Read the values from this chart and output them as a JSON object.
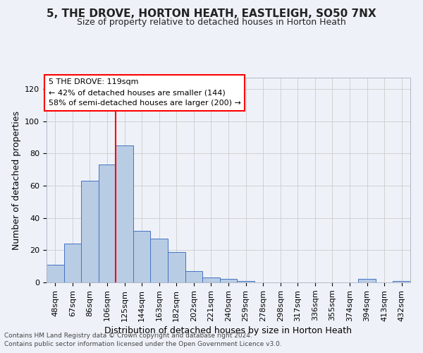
{
  "title_line1": "5, THE DROVE, HORTON HEATH, EASTLEIGH, SO50 7NX",
  "title_line2": "Size of property relative to detached houses in Horton Heath",
  "xlabel": "Distribution of detached houses by size in Horton Heath",
  "ylabel": "Number of detached properties",
  "bar_labels": [
    "48sqm",
    "67sqm",
    "86sqm",
    "106sqm",
    "125sqm",
    "144sqm",
    "163sqm",
    "182sqm",
    "202sqm",
    "221sqm",
    "240sqm",
    "259sqm",
    "278sqm",
    "298sqm",
    "317sqm",
    "336sqm",
    "355sqm",
    "374sqm",
    "394sqm",
    "413sqm",
    "432sqm"
  ],
  "bar_values": [
    11,
    24,
    63,
    73,
    85,
    32,
    27,
    19,
    7,
    3,
    2,
    1,
    0,
    0,
    0,
    0,
    0,
    0,
    2,
    0,
    1
  ],
  "bar_color": "#b8cce4",
  "bar_edge_color": "#4472c4",
  "grid_color": "#d0d0d0",
  "vline_index": 4,
  "vline_color": "red",
  "annotation_text_line1": "5 THE DROVE: 119sqm",
  "annotation_text_line2": "← 42% of detached houses are smaller (144)",
  "annotation_text_line3": "58% of semi-detached houses are larger (200) →",
  "annotation_box_color": "white",
  "annotation_border_color": "red",
  "ylim": [
    0,
    127
  ],
  "yticks": [
    0,
    20,
    40,
    60,
    80,
    100,
    120
  ],
  "footnote1": "Contains HM Land Registry data © Crown copyright and database right 2024.",
  "footnote2": "Contains public sector information licensed under the Open Government Licence v3.0.",
  "bg_color": "#eef2f8",
  "plot_bg_color": "#eef2f8",
  "title1_fontsize": 11,
  "title2_fontsize": 9,
  "ylabel_fontsize": 9,
  "xlabel_fontsize": 9,
  "tick_fontsize": 8,
  "annot_fontsize": 8,
  "footnote_fontsize": 6.5
}
